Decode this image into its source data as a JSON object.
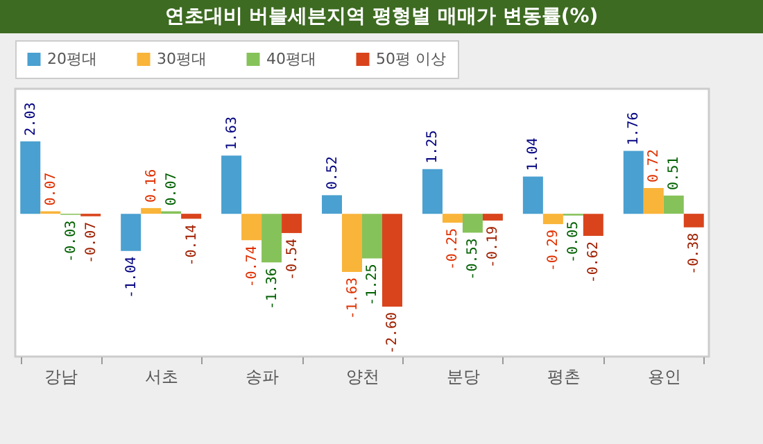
{
  "chart_data": {
    "type": "bar",
    "title": "연초대비 버블세븐지역 평형별 매매가 변동률(%)",
    "categories": [
      "강남",
      "서초",
      "송파",
      "양천",
      "분당",
      "평촌",
      "용인"
    ],
    "series": [
      {
        "name": "20평대",
        "color": "#4aa0d0",
        "values": [
          2.03,
          -1.04,
          1.63,
          0.52,
          1.25,
          1.04,
          1.76
        ],
        "value_labels": [
          "2.03",
          "-1.04",
          "1.63",
          "0.52",
          "1.25",
          "1.04",
          "1.76"
        ]
      },
      {
        "name": "30평대",
        "color": "#f9b43a",
        "values": [
          0.07,
          0.16,
          -0.74,
          -1.63,
          -0.25,
          -0.29,
          0.72
        ],
        "value_labels": [
          "0.07",
          "0.16",
          "-0.74",
          "-1.63",
          "-0.25",
          "-0.29",
          "0.72"
        ]
      },
      {
        "name": "40평대",
        "color": "#86c25a",
        "values": [
          -0.03,
          0.07,
          -1.36,
          -1.25,
          -0.53,
          -0.05,
          0.51
        ],
        "value_labels": [
          "-0.03",
          "0.07",
          "-1.36",
          "-1.25",
          "-0.53",
          "-0.05",
          "0.51"
        ]
      },
      {
        "name": "50평 이상",
        "color": "#d9441c",
        "values": [
          -0.07,
          -0.14,
          -0.54,
          -2.6,
          -0.19,
          -0.62,
          -0.38
        ],
        "value_labels": [
          "-0.07",
          "-0.14",
          "-0.54",
          "-2.60",
          "-0.19",
          "-0.62",
          "-0.38"
        ]
      }
    ],
    "ylim": [
      -4,
      3.5
    ],
    "tick_labels": "x",
    "legend": "top"
  }
}
